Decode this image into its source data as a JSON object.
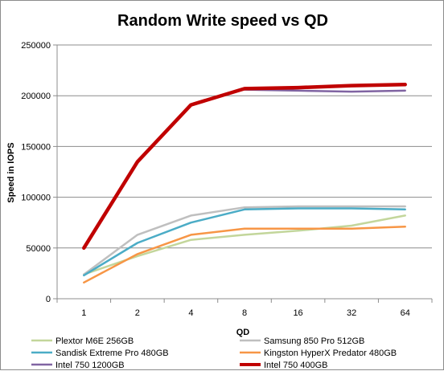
{
  "chart_data": {
    "type": "line",
    "title": "Random Write speed vs QD",
    "xlabel": "QD",
    "ylabel": "Speed in IOPS",
    "categories": [
      "1",
      "2",
      "4",
      "8",
      "16",
      "32",
      "64"
    ],
    "ylim": [
      0,
      250000
    ],
    "yticks": [
      0,
      50000,
      100000,
      150000,
      200000,
      250000
    ],
    "yticklabels": [
      "0",
      "50000",
      "100000",
      "150000",
      "200000",
      "250000"
    ],
    "grid": "horizontal",
    "legend_position": "bottom",
    "series": [
      {
        "name": "Plextor M6E 256GB",
        "color": "#c3d69b",
        "width": 2.5,
        "values": [
          24000,
          42000,
          58000,
          63000,
          67000,
          72000,
          82000
        ]
      },
      {
        "name": "Samsung 850 Pro 512GB",
        "color": "#bfbfbf",
        "width": 2.5,
        "values": [
          24000,
          63000,
          82000,
          90000,
          91000,
          91000,
          91000
        ]
      },
      {
        "name": "Sandisk Extreme Pro 480GB",
        "color": "#4bacc6",
        "width": 2.5,
        "values": [
          23000,
          55000,
          75000,
          88000,
          89000,
          89000,
          88000
        ]
      },
      {
        "name": "Kingston HyperX Predator 480GB",
        "color": "#f79646",
        "width": 2.5,
        "values": [
          16000,
          44000,
          63000,
          69000,
          69000,
          69000,
          71000
        ]
      },
      {
        "name": "Intel 750 1200GB",
        "color": "#8064a2",
        "width": 2.5,
        "values": [
          null,
          null,
          null,
          206000,
          205000,
          204000,
          205000
        ]
      },
      {
        "name": "Intel 750 400GB",
        "color": "#c00000",
        "width": 4.5,
        "values": [
          50000,
          135000,
          191000,
          207000,
          208000,
          210000,
          211000
        ]
      }
    ]
  }
}
